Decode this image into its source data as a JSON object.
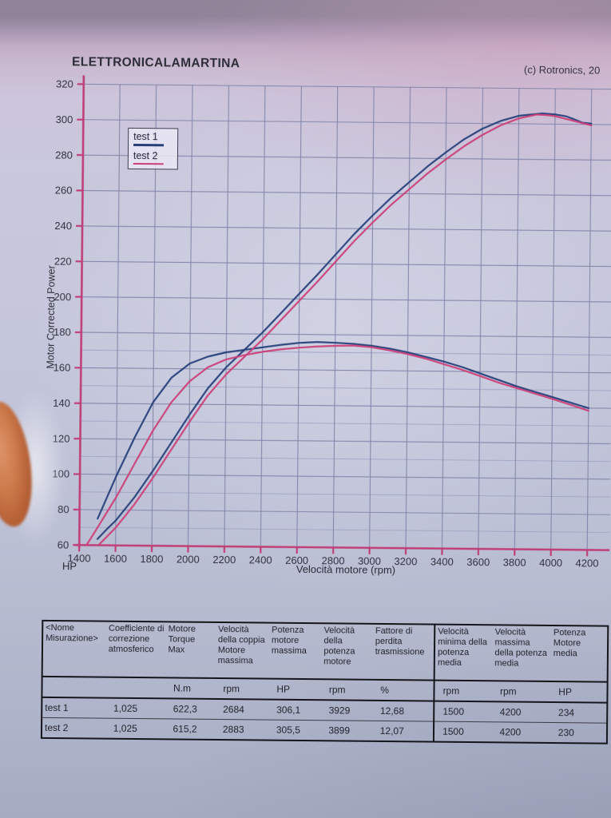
{
  "header": {
    "title": "ELETTRONICALAMARTINA",
    "copyright": "(c) Rotronics, 20"
  },
  "chart_data": {
    "type": "line",
    "title": "ELETTRONICALAMARTINA",
    "xlabel": "Velocità motore (rpm)",
    "ylabel": "Motor Corrected Power",
    "y_unit": "HP",
    "xlim": [
      1400,
      4200
    ],
    "ylim": [
      60,
      320
    ],
    "x_ticks": [
      1400,
      1600,
      1800,
      2000,
      2200,
      2400,
      2600,
      2800,
      3000,
      3200,
      3400,
      3600,
      3800,
      4000,
      4200
    ],
    "y_ticks": [
      60,
      80,
      100,
      120,
      140,
      160,
      180,
      200,
      220,
      240,
      260,
      280,
      300,
      320
    ],
    "grid": "major 20 HP / 200 rpm; minor horizontal lines every 10 HP from 60 to 180",
    "legend_position": "top-left-inside",
    "axis_color": "#bf3f78",
    "grid_major_color": "#7e82a6",
    "grid_minor_color": "#9a9ec0",
    "runs": [
      {
        "name": "test 1",
        "color": "#27407a",
        "power_hp": [
          [
            1500,
            63.5
          ],
          [
            1560,
            70
          ],
          [
            1600,
            74
          ],
          [
            1700,
            87
          ],
          [
            1800,
            102
          ],
          [
            1900,
            118
          ],
          [
            2000,
            134
          ],
          [
            2100,
            149
          ],
          [
            2200,
            161
          ],
          [
            2300,
            171
          ],
          [
            2400,
            181
          ],
          [
            2500,
            192
          ],
          [
            2600,
            203
          ],
          [
            2700,
            214
          ],
          [
            2800,
            225.5
          ],
          [
            2900,
            237
          ],
          [
            3000,
            247.5
          ],
          [
            3100,
            257.5
          ],
          [
            3200,
            266.5
          ],
          [
            3300,
            275.5
          ],
          [
            3400,
            283.5
          ],
          [
            3500,
            291
          ],
          [
            3600,
            297
          ],
          [
            3700,
            301.5
          ],
          [
            3800,
            304.5
          ],
          [
            3930,
            306
          ],
          [
            4000,
            305.5
          ],
          [
            4060,
            304.5
          ],
          [
            4100,
            303
          ],
          [
            4150,
            301
          ],
          [
            4200,
            300.5
          ]
        ],
        "torque_curve_display": [
          [
            1500,
            75
          ],
          [
            1550,
            87
          ],
          [
            1600,
            99
          ],
          [
            1700,
            121
          ],
          [
            1800,
            141
          ],
          [
            1900,
            155
          ],
          [
            2000,
            163
          ],
          [
            2100,
            167
          ],
          [
            2200,
            169.5
          ],
          [
            2300,
            171
          ],
          [
            2400,
            172.5
          ],
          [
            2500,
            174
          ],
          [
            2600,
            175.2
          ],
          [
            2700,
            175.8
          ],
          [
            2800,
            175.5
          ],
          [
            2900,
            175
          ],
          [
            3000,
            174
          ],
          [
            3100,
            172.5
          ],
          [
            3200,
            170.5
          ],
          [
            3300,
            168
          ],
          [
            3400,
            165.5
          ],
          [
            3500,
            162.5
          ],
          [
            3600,
            159
          ],
          [
            3700,
            155.5
          ],
          [
            3800,
            152
          ],
          [
            3900,
            149
          ],
          [
            4000,
            146
          ],
          [
            4100,
            143
          ],
          [
            4200,
            140
          ]
        ]
      },
      {
        "name": "test 2",
        "color": "#cb4079",
        "power_hp": [
          [
            1510,
            60.5
          ],
          [
            1600,
            70
          ],
          [
            1700,
            83
          ],
          [
            1800,
            98
          ],
          [
            1900,
            114
          ],
          [
            2000,
            130
          ],
          [
            2100,
            145
          ],
          [
            2200,
            157
          ],
          [
            2300,
            167
          ],
          [
            2400,
            177
          ],
          [
            2500,
            188
          ],
          [
            2600,
            199
          ],
          [
            2700,
            210
          ],
          [
            2800,
            221.5
          ],
          [
            2900,
            233
          ],
          [
            3000,
            243.5
          ],
          [
            3100,
            253.5
          ],
          [
            3200,
            262.5
          ],
          [
            3300,
            271.5
          ],
          [
            3400,
            279.5
          ],
          [
            3500,
            287
          ],
          [
            3600,
            293.5
          ],
          [
            3700,
            299
          ],
          [
            3800,
            303
          ],
          [
            3900,
            305.3
          ],
          [
            3960,
            305
          ],
          [
            4000,
            304.5
          ],
          [
            4100,
            302
          ],
          [
            4200,
            299.5
          ]
        ],
        "torque_curve_display": [
          [
            1440,
            60
          ],
          [
            1500,
            70
          ],
          [
            1600,
            87
          ],
          [
            1700,
            106
          ],
          [
            1800,
            125
          ],
          [
            1900,
            141
          ],
          [
            2000,
            153
          ],
          [
            2100,
            161
          ],
          [
            2200,
            165.5
          ],
          [
            2300,
            168
          ],
          [
            2400,
            170
          ],
          [
            2500,
            171.5
          ],
          [
            2600,
            172.5
          ],
          [
            2700,
            173.3
          ],
          [
            2800,
            173.8
          ],
          [
            2900,
            174
          ],
          [
            3000,
            173.2
          ],
          [
            3100,
            171.5
          ],
          [
            3200,
            169.5
          ],
          [
            3300,
            167
          ],
          [
            3400,
            164
          ],
          [
            3500,
            161
          ],
          [
            3600,
            157.5
          ],
          [
            3700,
            154
          ],
          [
            3800,
            151
          ],
          [
            3900,
            148
          ],
          [
            4000,
            145
          ],
          [
            4100,
            141.8
          ],
          [
            4200,
            138.5
          ]
        ]
      }
    ]
  },
  "table": {
    "headers": [
      "<Nome Misurazione>",
      "Coefficiente di correzione atmosferico",
      "Motore Torque Max",
      "Velocità della coppia Motore massima",
      "Potenza motore massima",
      "Velocità della potenza motore",
      "Fattore di perdita trasmissione",
      "Velocità minima della potenza media",
      "Velocità massima della potenza media",
      "Potenza Motore media"
    ],
    "units": [
      "",
      "",
      "N.m",
      "rpm",
      "HP",
      "rpm",
      "%",
      "rpm",
      "rpm",
      "HP"
    ],
    "rows": [
      [
        "test 1",
        "1,025",
        "622,3",
        "2684",
        "306,1",
        "3929",
        "12,68",
        "1500",
        "4200",
        "234"
      ],
      [
        "test 2",
        "1,025",
        "615,2",
        "2883",
        "305,5",
        "3899",
        "12,07",
        "1500",
        "4200",
        "230"
      ]
    ]
  }
}
